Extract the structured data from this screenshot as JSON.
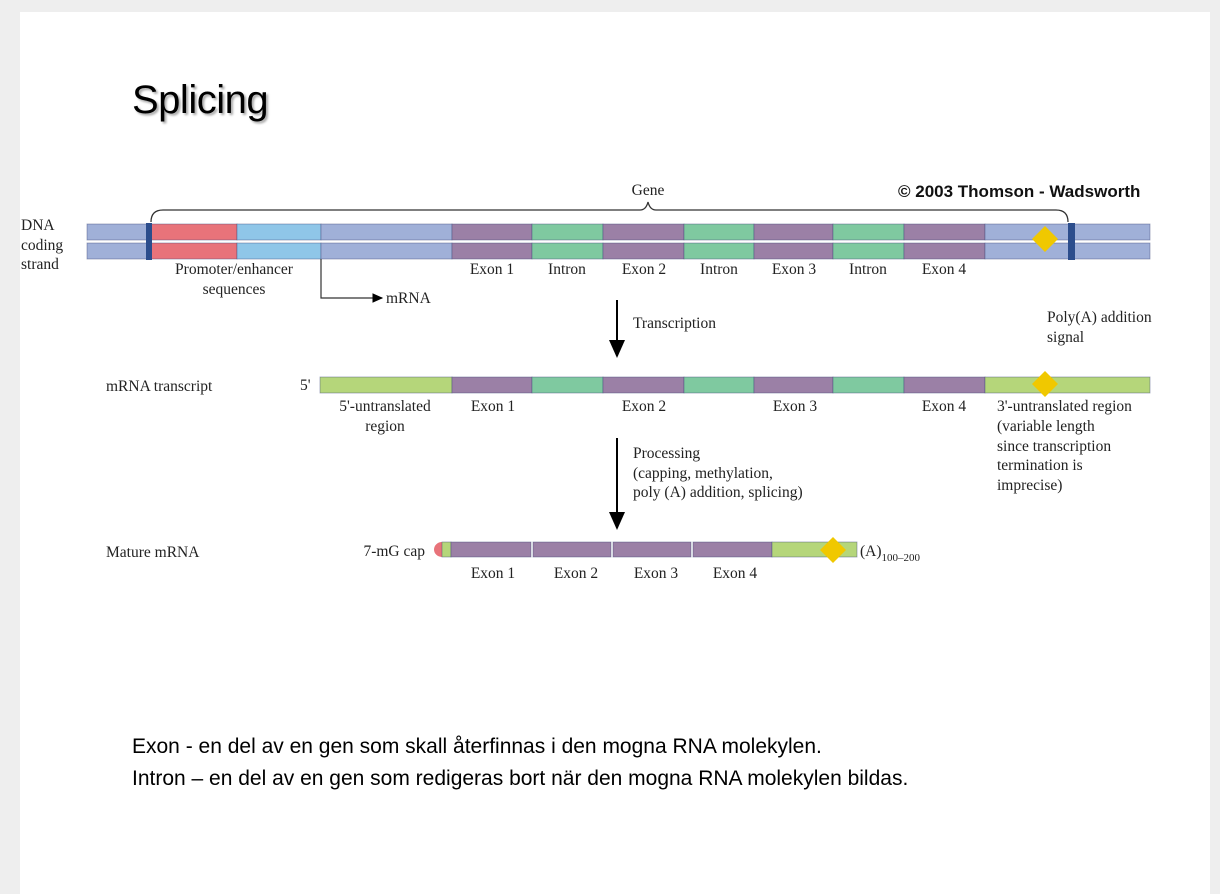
{
  "slide": {
    "title": "Splicing",
    "copyright": "© 2003 Thomson - Wadsworth",
    "definitions": [
      "Exon -  en del av en gen som skall återfinnas i den mogna RNA molekylen.",
      "Intron – en del av en gen som redigeras bort när den mogna RNA molekylen bildas."
    ]
  },
  "diagram": {
    "colors": {
      "flank": "#a0b0d8",
      "marker": "#2c4d8c",
      "promoter": "#e8737a",
      "enhancer": "#8fc6e8",
      "exon": "#9b80a6",
      "intron": "#7fc9a0",
      "utr": "#b5d67a",
      "polyA_signal": "#f0c800"
    },
    "gene_label": "Gene",
    "dna": {
      "label": [
        "DNA",
        "coding",
        "strand"
      ],
      "promoter_label": [
        "Promoter/enhancer",
        "sequences"
      ],
      "mrna_start_label": "mRNA",
      "segment_labels": [
        "Exon 1",
        "Intron",
        "Exon 2",
        "Intron",
        "Exon 3",
        "Intron",
        "Exon 4"
      ]
    },
    "step1": "Transcription",
    "polyA_signal_label": [
      "Poly(A) addition",
      "signal"
    ],
    "transcript": {
      "label": "mRNA transcript",
      "five_prime": "5'",
      "utr5_label": [
        "5'-untranslated",
        "region"
      ],
      "exon_labels": [
        "Exon 1",
        "Exon 2",
        "Exon 3",
        "Exon 4"
      ],
      "utr3_label": [
        "3'-untranslated region",
        "(variable length",
        "since transcription",
        "termination is",
        "imprecise)"
      ]
    },
    "step2": [
      "Processing",
      "(capping, methylation,",
      "poly (A) addition, splicing)"
    ],
    "mature": {
      "label": "Mature mRNA",
      "cap_label": "7-mG cap",
      "tail": "(A)",
      "tail_sub": "100–200",
      "exon_labels": [
        "Exon 1",
        "Exon 2",
        "Exon 3",
        "Exon 4"
      ]
    }
  }
}
